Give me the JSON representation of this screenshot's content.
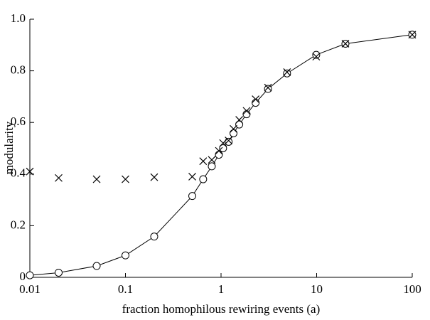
{
  "chart_data": {
    "type": "line",
    "xlabel": "fraction homophilous rewiring events (a)",
    "ylabel": "modularity",
    "x": [
      0.01,
      0.02,
      0.05,
      0.1,
      0.2,
      0.5,
      0.65,
      0.8,
      0.95,
      1.05,
      1.2,
      1.35,
      1.55,
      1.85,
      2.3,
      3.1,
      4.9,
      9.9,
      20,
      100
    ],
    "xscale": "log",
    "xlim": [
      0.01,
      100
    ],
    "xticks": [
      0.01,
      0.1,
      1,
      10,
      100
    ],
    "ylim": [
      0,
      1
    ],
    "yticks": [
      0,
      0.2,
      0.4,
      0.6,
      0.8,
      {
        "value": 1,
        "label": "1.0"
      }
    ],
    "series": [
      {
        "marker": "circle",
        "line": true,
        "color": "#000000",
        "values": [
          0.008,
          0.018,
          0.044,
          0.085,
          0.158,
          0.315,
          0.38,
          0.43,
          0.475,
          0.5,
          0.525,
          0.558,
          0.592,
          0.632,
          0.676,
          0.73,
          0.79,
          0.862,
          0.905,
          0.94
        ]
      },
      {
        "marker": "cross",
        "line": false,
        "color": "#000000",
        "values": [
          0.41,
          0.385,
          0.38,
          0.38,
          0.388,
          0.39,
          0.45,
          0.455,
          0.49,
          0.52,
          0.53,
          0.575,
          0.61,
          0.645,
          0.69,
          0.735,
          0.795,
          0.855,
          0.905,
          0.94
        ]
      }
    ]
  }
}
